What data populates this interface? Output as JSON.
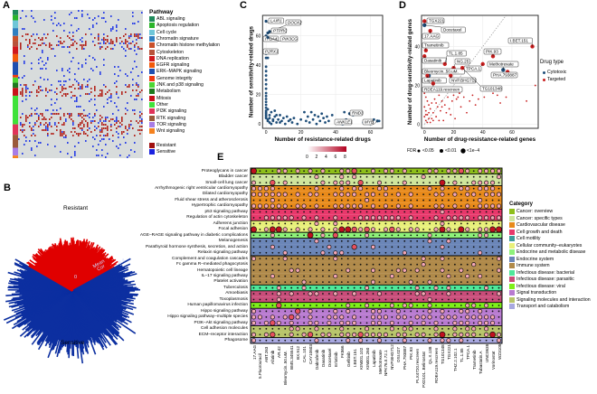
{
  "panels": {
    "a": "A",
    "b": "B",
    "c": "C",
    "d": "D",
    "e": "E"
  },
  "panel_a": {
    "legend_title": "Pathway",
    "pathways": [
      {
        "name": "ABL signaling",
        "color": "#1f8a5b"
      },
      {
        "name": "Apoptosis regulation",
        "color": "#2bb52b"
      },
      {
        "name": "Cell cycle",
        "color": "#6ec6d8"
      },
      {
        "name": "Chromatin signature",
        "color": "#2f7fc0"
      },
      {
        "name": "Chromatin  histone methylation",
        "color": "#c9502a"
      },
      {
        "name": "Cytoskeleton",
        "color": "#b8523a"
      },
      {
        "name": "DNA replication",
        "color": "#d0181c"
      },
      {
        "name": "EGFR signaling",
        "color": "#f25a0a"
      },
      {
        "name": "ERK–MAPK signaling",
        "color": "#1f4fb0"
      },
      {
        "name": "Genome integrity",
        "color": "#f03a10"
      },
      {
        "name": "JNK and p38 signaling",
        "color": "#4cd633"
      },
      {
        "name": "Metabolism",
        "color": "#1e7a1e"
      },
      {
        "name": "Mitosis",
        "color": "#c8101a"
      },
      {
        "name": "Other",
        "color": "#3fe23a"
      },
      {
        "name": "PI3K signaling",
        "color": "#e0335a"
      },
      {
        "name": "RTK signaling",
        "color": "#9a5a3a"
      },
      {
        "name": "TOR signaling",
        "color": "#a87ce6"
      },
      {
        "name": "Wnt signaling",
        "color": "#f5821f"
      }
    ],
    "status": [
      {
        "name": "Resistant",
        "color": "#a01010"
      },
      {
        "name": "Sensitive",
        "color": "#1a22e0"
      }
    ]
  },
  "panel_b": {
    "top_label": "Resistant",
    "bottom_label": "Sensitive",
    "axis_label": "Mean\nCor",
    "axis_ticks": [
      "0",
      "0.4"
    ],
    "resistant_color": "#e00000",
    "sensitive_color": "#0c2fa0"
  },
  "chart_data": [
    {
      "type": "scatter",
      "panel": "C",
      "xlabel": "Number of resistance-related drugs",
      "ylabel": "Number of sensitivity-related drugs",
      "xlim": [
        -2,
        67
      ],
      "ylim": [
        -3,
        74
      ],
      "xticks": [
        0,
        20,
        40,
        60
      ],
      "yticks": [
        0,
        20,
        40,
        60
      ],
      "grid": true,
      "color": "#1f4e79",
      "labeled_points": [
        {
          "label": "LAIR1",
          "x": 0,
          "y": 70
        },
        {
          "label": "DOCK2",
          "x": 2,
          "y": 63
        },
        {
          "label": "PTPRC",
          "x": 1,
          "y": 62
        },
        {
          "label": "ITGA4",
          "x": 0,
          "y": 60
        },
        {
          "label": "PIK3CG",
          "x": 1,
          "y": 59
        },
        {
          "label": "P2RX1",
          "x": 0,
          "y": 48
        },
        {
          "label": "RND3",
          "x": 48,
          "y": 7
        },
        {
          "label": "ANKLE1",
          "x": 44,
          "y": 0
        },
        {
          "label": "MYB",
          "x": 64,
          "y": 2
        }
      ],
      "points": [
        [
          0,
          45
        ],
        [
          1,
          45
        ],
        [
          0,
          39
        ],
        [
          0,
          36
        ],
        [
          0,
          33
        ],
        [
          0,
          30
        ],
        [
          0,
          27
        ],
        [
          0,
          24
        ],
        [
          0,
          21
        ],
        [
          0,
          19
        ],
        [
          0,
          17
        ],
        [
          0,
          15
        ],
        [
          0,
          13
        ],
        [
          0,
          11
        ],
        [
          0,
          9
        ],
        [
          0,
          8
        ],
        [
          0,
          7
        ],
        [
          0,
          6
        ],
        [
          0,
          5
        ],
        [
          0,
          4
        ],
        [
          1,
          3
        ],
        [
          1,
          2
        ],
        [
          2,
          1
        ],
        [
          2,
          4
        ],
        [
          3,
          0
        ],
        [
          4,
          2
        ],
        [
          5,
          5
        ],
        [
          6,
          1
        ],
        [
          7,
          3
        ],
        [
          8,
          6
        ],
        [
          9,
          2
        ],
        [
          10,
          4
        ],
        [
          11,
          0
        ],
        [
          12,
          5
        ],
        [
          13,
          2
        ],
        [
          14,
          3
        ],
        [
          15,
          1
        ],
        [
          16,
          4
        ],
        [
          18,
          0
        ],
        [
          20,
          3
        ],
        [
          22,
          8
        ],
        [
          23,
          2
        ],
        [
          24,
          5
        ],
        [
          25,
          1
        ],
        [
          26,
          8
        ],
        [
          27,
          3
        ],
        [
          28,
          6
        ],
        [
          29,
          0
        ],
        [
          30,
          5
        ],
        [
          31,
          2
        ],
        [
          32,
          7
        ],
        [
          33,
          4
        ],
        [
          34,
          1
        ],
        [
          35,
          5
        ],
        [
          36,
          2
        ],
        [
          38,
          6
        ],
        [
          42,
          1
        ],
        [
          45,
          8
        ],
        [
          46,
          3
        ],
        [
          50,
          6
        ],
        [
          56,
          1
        ],
        [
          60,
          0
        ],
        [
          62,
          3
        ],
        [
          65,
          2
        ],
        [
          3,
          8
        ],
        [
          5,
          9
        ],
        [
          2,
          6
        ],
        [
          1,
          10
        ],
        [
          4,
          3
        ],
        [
          6,
          6
        ],
        [
          8,
          1
        ]
      ]
    },
    {
      "type": "scatter",
      "panel": "D",
      "xlabel": "Number of drug-resistance-related genes",
      "ylabel": "Number of drug-sensitivity-related genes",
      "xlim": [
        -2,
        78
      ],
      "ylim": [
        -2,
        56
      ],
      "xticks": [
        0,
        20,
        40,
        60
      ],
      "yticks": [
        0,
        20,
        40
      ],
      "grid": true,
      "diagonal": "y = x dashed",
      "legend_title": "Drug type",
      "legend_position": "right",
      "series": [
        {
          "name": "Cytotoxic",
          "color": "#1f4e79"
        },
        {
          "name": "Targeted",
          "color": "#c81e1e"
        }
      ],
      "labeled_points": [
        {
          "label": "TGX221",
          "x": 0,
          "y": 53,
          "type": "Targeted"
        },
        {
          "label": "Docetaxel",
          "x": 0,
          "y": 51,
          "type": "Cytotoxic"
        },
        {
          "label": "17.AAG",
          "x": 4,
          "y": 48,
          "type": "Targeted"
        },
        {
          "label": "Trametinib",
          "x": 1,
          "y": 38,
          "type": "Targeted"
        },
        {
          "label": "Dasatinib",
          "x": 0,
          "y": 35,
          "type": "Targeted"
        },
        {
          "label": "TL.1.85",
          "x": 14,
          "y": 31,
          "type": "Targeted"
        },
        {
          "label": "NG.25",
          "x": 20,
          "y": 29,
          "type": "Targeted"
        },
        {
          "label": "TPCA.1",
          "x": 40,
          "y": 31,
          "type": "Targeted"
        },
        {
          "label": "PIK.93",
          "x": 47,
          "y": 35,
          "type": "Targeted"
        },
        {
          "label": "I.BET.151",
          "x": 74,
          "y": 40,
          "type": "Targeted"
        },
        {
          "label": "Methotrexate",
          "x": 54,
          "y": 28,
          "type": "Cytotoxic"
        },
        {
          "label": "PHA.793887",
          "x": 57,
          "y": 27,
          "type": "Targeted"
        },
        {
          "label": "Bleomycin..50.uM.",
          "x": 3,
          "y": 25,
          "type": "Cytotoxic"
        },
        {
          "label": "NVP.BHG712",
          "x": 18,
          "y": 25,
          "type": "Targeted"
        },
        {
          "label": "TG101348",
          "x": 26,
          "y": 29,
          "type": "Targeted"
        },
        {
          "label": "Lapatinib",
          "x": 2,
          "y": 25,
          "type": "Targeted"
        },
        {
          "label": "RDEA119.rescreen",
          "x": 6,
          "y": 21,
          "type": "Targeted"
        }
      ],
      "points": [
        [
          0,
          16
        ],
        [
          1,
          14
        ],
        [
          2,
          12
        ],
        [
          3,
          10
        ],
        [
          0,
          9
        ],
        [
          1,
          7
        ],
        [
          2,
          5
        ],
        [
          3,
          3
        ],
        [
          4,
          8
        ],
        [
          5,
          11
        ],
        [
          6,
          6
        ],
        [
          7,
          13
        ],
        [
          8,
          4
        ],
        [
          9,
          9
        ],
        [
          10,
          15
        ],
        [
          11,
          7
        ],
        [
          12,
          12
        ],
        [
          13,
          2
        ],
        [
          14,
          10
        ],
        [
          15,
          6
        ],
        [
          16,
          14
        ],
        [
          17,
          8
        ],
        [
          18,
          5
        ],
        [
          19,
          12
        ],
        [
          20,
          15
        ],
        [
          21,
          3
        ],
        [
          22,
          13
        ],
        [
          24,
          16
        ],
        [
          25,
          9
        ],
        [
          27,
          14
        ],
        [
          29,
          6
        ],
        [
          31,
          12
        ],
        [
          33,
          15
        ],
        [
          35,
          10
        ],
        [
          37,
          13
        ],
        [
          41,
          14
        ],
        [
          47,
          16
        ],
        [
          50,
          15
        ],
        [
          52,
          11
        ],
        [
          56,
          14
        ],
        [
          70,
          12
        ],
        [
          76,
          20
        ],
        [
          1,
          2
        ],
        [
          2,
          1
        ],
        [
          4,
          1
        ],
        [
          5,
          3
        ],
        [
          6,
          2
        ],
        [
          0,
          4
        ],
        [
          1,
          5
        ],
        [
          3,
          6
        ],
        [
          8,
          11
        ],
        [
          10,
          2
        ],
        [
          12,
          9
        ],
        [
          23,
          14
        ]
      ]
    },
    {
      "type": "dot-heatmap",
      "panel": "E",
      "colorbar": {
        "ticks": [
          "0",
          "2",
          "4",
          "6",
          "8"
        ],
        "low": "#ffffff",
        "high": "#b2001f"
      },
      "fdr_legend": {
        "title": "FDR",
        "levels": [
          "<0.05",
          "<0.01",
          "<1e−4"
        ]
      },
      "legend_title": "Category",
      "categories": [
        {
          "name": "Cancer: overview",
          "color": "#8ebf1a"
        },
        {
          "name": "Cancer: specific types",
          "color": "#cfe59c"
        },
        {
          "name": "Cardiovascular disease",
          "color": "#e88a1a"
        },
        {
          "name": "Cell growth and death",
          "color": "#e8386b"
        },
        {
          "name": "Cell motility",
          "color": "#3d9a9a"
        },
        {
          "name": "Cellular community–eukaryotes",
          "color": "#e8f07a"
        },
        {
          "name": "Endocrine and metabolic disease",
          "color": "#8ef27a"
        },
        {
          "name": "Endocrine system",
          "color": "#6b86b8"
        },
        {
          "name": "Immune system",
          "color": "#b08a4a"
        },
        {
          "name": "Infectious disease: bacterial",
          "color": "#4ee89a"
        },
        {
          "name": "Infectious disease: parasitic",
          "color": "#c94d7a"
        },
        {
          "name": "Infectious disease: viral",
          "color": "#7ef01a"
        },
        {
          "name": "Signal transduction",
          "color": "#b87ad0"
        },
        {
          "name": "Signaling molecules and interaction",
          "color": "#b8c46a"
        },
        {
          "name": "Transport and catabolism",
          "color": "#a8a8e0"
        }
      ],
      "drugs": [
        "17.AAG",
        "5.Fluorouracil",
        "ABT.263",
        "Afatinib",
        "AR.42",
        "Bleomycin..50.uM.",
        "BMS.345541",
        "BX.912",
        "CAL.101",
        "CAY10603",
        "Dabrafenib",
        "Dasatinib",
        "Docetaxel",
        "Erlotinib",
        "FK866",
        "Gefitinib",
        "I.BET.151",
        "KIN001.102",
        "KIN001.260",
        "Lapatinib",
        "Methotrexate",
        "NPK76.II.72.1",
        "NVP.BHG712",
        "OSI.027",
        "PHA.793887",
        "PIK.93",
        "PLX4720.rescreen",
        "PXD101..Belinostat",
        "QL.X.138",
        "RDEA119.rescreen",
        "TG101348",
        "TGX221",
        "THZ.2.102.1",
        "TL.1.85",
        "TPCA.1",
        "Trametinib",
        "Tubastatin.A",
        "UNC0638",
        "Vorinostat",
        "WZ3105"
      ],
      "pathways": [
        {
          "name": "Proteoglycans in cancer",
          "cat": 0,
          "sig": "R...oo.o.o.o..ooO..o.oo.o...oo.ooOo.oooo"
        },
        {
          "name": "Bladder cancer",
          "cat": 1,
          "sig": "..........o...o.o..........o...........o"
        },
        {
          "name": "Small-cell lung cancer",
          "cat": 1,
          "sig": "o..O.o.....o.ooo.O..o...o.....R.o..oooo."
        },
        {
          "name": "Arrhythmogenic right ventricular cardiomyopathy",
          "cat": 2,
          "sig": "oooo......o...o.oo..oo......o.o..oo.ooo."
        },
        {
          "name": "Dilated cardiomyopathy",
          "cat": 2,
          "sig": "oooooo.o.oo..oooo.oo.o.o.o...oo.o.oo.ooo"
        },
        {
          "name": "Fluid shear stress and atherosclerosis",
          "cat": 2,
          "sig": "...o..............o.................o..."
        },
        {
          "name": "Hypertrophic cardiomyopathy",
          "cat": 2,
          "sig": "oooooo.oo.o..ooooo.o.o.o.o...oo.o.o.oooo"
        },
        {
          "name": "p53 signaling pathway",
          "cat": 3,
          "sig": "..............................o........."
        },
        {
          "name": "Regulation of actin cytoskeleton",
          "cat": 3,
          "sig": "..ooooo.o.o..o...ooooooo.o...o.oooo.oooo"
        },
        {
          "name": "Adherens junction",
          "cat": 5,
          "sig": "..........o..o................o........."
        },
        {
          "name": "Focal adhesion",
          "cat": 5,
          "sig": "R.oRRo.o.o.o.oRROoOo.oOo.oo..oRo.Ro.ooRR"
        },
        {
          "name": "AGE–RAGE signaling pathway in diabetic complications",
          "cat": 6,
          "sig": "...o.....R.o.O....o.........o.......oo.."
        },
        {
          "name": "Melanogenesis",
          "cat": 7,
          "sig": "..........o.................o..o........"
        },
        {
          "name": "Parathyroid hormone synthesis, secretion, and action",
          "cat": 7,
          "sig": "...o........o...O..o..........o........."
        },
        {
          "name": "Relaxin signaling pathway",
          "cat": 7,
          "sig": ".....o.....o.oo.........o...........o..."
        },
        {
          "name": "Complement and coagulation cascades",
          "cat": 8,
          "sig": "o....o.......o.............o..o........o"
        },
        {
          "name": "Fc gamma R–mediated phagocytosis",
          "cat": 8,
          "sig": "...........................o.......o...."
        },
        {
          "name": "Hematopoietic cell lineage",
          "cat": 8,
          "sig": "......oo.......o...o...oo.o...o..o.....o"
        },
        {
          "name": "IL–17 signaling pathway",
          "cat": 8,
          "sig": "...o.........o........o........o..o.o..."
        },
        {
          "name": "Platelet activation",
          "cat": 8,
          "sig": "........o..........o.....o..o..........."
        },
        {
          "name": "Tuberculosis",
          "cat": 9,
          "sig": "....o...o.........o.......o..o.o.....o.."
        },
        {
          "name": "Amoebiasis",
          "cat": 10,
          "sig": "....o.o..oo..o..o...o.....oo...o.......o"
        },
        {
          "name": "Toxoplasmosis",
          "cat": 10,
          "sig": "....o.......................o..........."
        },
        {
          "name": "Human papillomavirus infection",
          "cat": 11,
          "sig": "....O..........o..o...o.oo..o.....oo.o.."
        },
        {
          "name": "Hippo signaling pathway",
          "cat": 12,
          "sig": "o......O.o...o.o...oo..o....o.o..oo.o..."
        },
        {
          "name": "Hippo signaling pathway–multiple species",
          "cat": 12,
          "sig": "oo.o.oOo.o..ooo.o..ooo.oo.ooo.ooo.ooooo."
        },
        {
          "name": "PI3K–Akt signaling pathway",
          "cat": 12,
          "sig": "o.oOo.o..oo.o.ooo..oo.o..o.o.o..ooo.ooo."
        },
        {
          "name": "Cell adhesion molecules",
          "cat": 13,
          "sig": "......oo..o...o...o...o.oo...o..o.oo.o.."
        },
        {
          "name": "ECM–receptor interaction",
          "cat": 13,
          "sig": "o.oO..o.oO.oo.oooOoooo.oo.oo.oR.oooo.oRo"
        },
        {
          "name": "Phagosome",
          "cat": 14,
          "sig": "o.........o....o.o..o...o...o.oo.o.....o"
        }
      ]
    }
  ]
}
